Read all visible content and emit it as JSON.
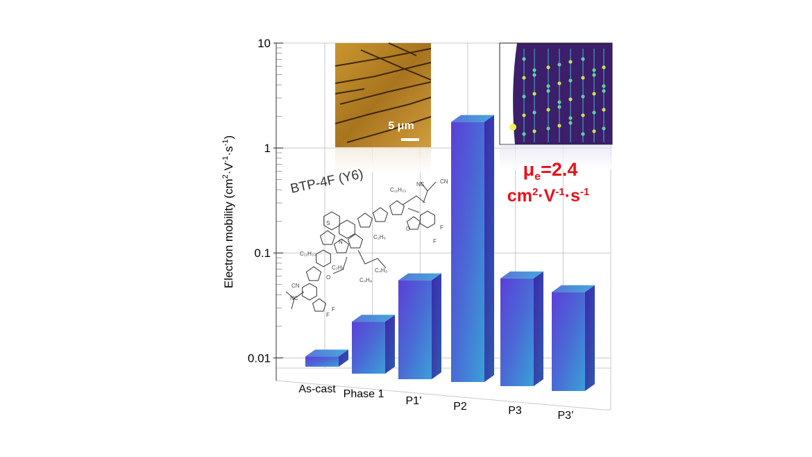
{
  "chart_data": {
    "type": "bar",
    "ylabel_parts": [
      "Electron mobility (cm",
      "2",
      "·V",
      "-1",
      "·s",
      "-1",
      ")"
    ],
    "yscale": "log",
    "ylim": [
      0.008,
      10
    ],
    "yticks": [
      {
        "value": 0.01,
        "label": "0.01"
      },
      {
        "value": 0.1,
        "label": "0.1"
      },
      {
        "value": 1,
        "label": "1"
      },
      {
        "value": 10,
        "label": "10"
      }
    ],
    "grid": true,
    "categories": [
      "As-cast",
      "Phase 1",
      "P1’",
      "P2",
      "P3",
      "P3’"
    ],
    "values": [
      0.01,
      0.025,
      0.07,
      2.4,
      0.085,
      0.07
    ],
    "bar_colors": [
      "#5b3fd8",
      "#4a6ad6",
      "#3aa0d8"
    ]
  },
  "annotations": {
    "molecule_name": "BTP-4F (Y6)",
    "mobility_line1_prefix": "μ",
    "mobility_line1_sub": "e",
    "mobility_line1_value": "=2.4",
    "mobility_line2_parts": [
      "cm",
      "2",
      "·V",
      "-1",
      "·s",
      "-1"
    ],
    "mobility_color": "#e8101a",
    "scale_bar_label": "5 μm"
  },
  "inset_images": {
    "afm_icon": "afm-height-map",
    "giwaxs_icon": "giwaxs-diffraction-pattern"
  },
  "structure_labels": [
    "C₁₁H₂₃",
    "C₁₁H₂₃",
    "C₂H₅",
    "C₄H₉",
    "C₂H₅",
    "C₄H₉",
    "N",
    "S",
    "F",
    "F",
    "F",
    "F",
    "O",
    "O",
    "NC",
    "CN",
    "NC",
    "CN"
  ]
}
